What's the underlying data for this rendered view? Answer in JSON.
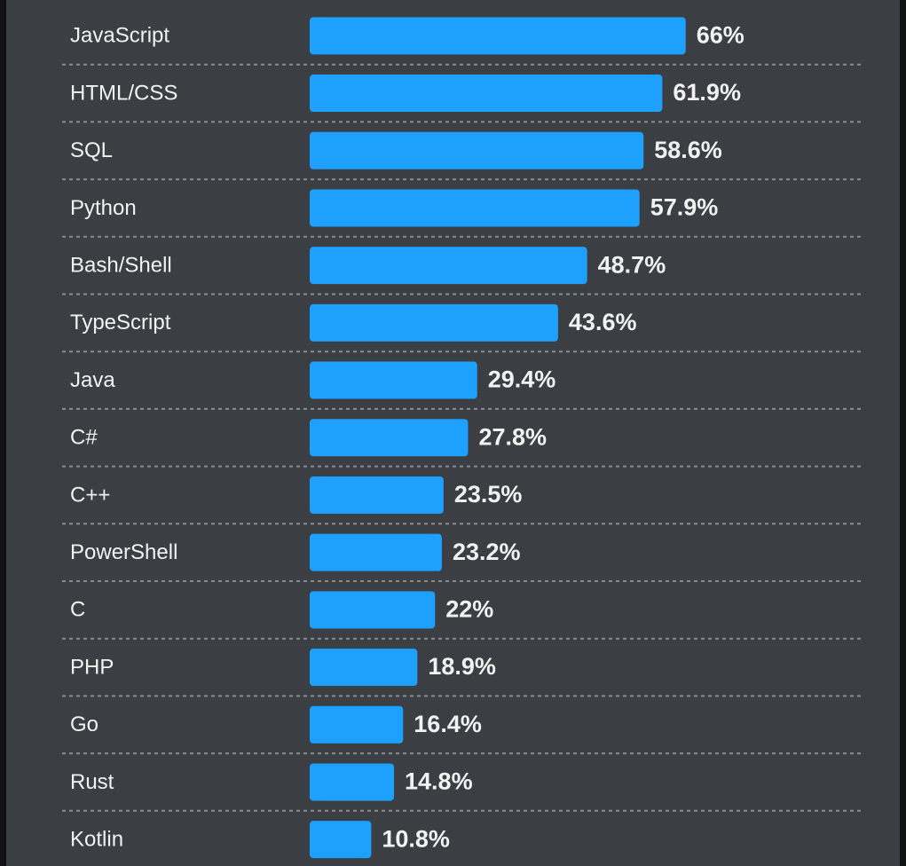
{
  "chart_data": {
    "type": "bar",
    "orientation": "horizontal",
    "categories": [
      "JavaScript",
      "HTML/CSS",
      "SQL",
      "Python",
      "Bash/Shell",
      "TypeScript",
      "Java",
      "C#",
      "C++",
      "PowerShell",
      "C",
      "PHP",
      "Go",
      "Rust",
      "Kotlin"
    ],
    "values": [
      66,
      61.9,
      58.6,
      57.9,
      48.7,
      43.6,
      29.4,
      27.8,
      23.5,
      23.2,
      22,
      18.9,
      16.4,
      14.8,
      10.8
    ],
    "value_labels": [
      "66%",
      "61.9%",
      "58.6%",
      "57.9%",
      "48.7%",
      "43.6%",
      "29.4%",
      "27.8%",
      "23.5%",
      "23.2%",
      "22%",
      "18.9%",
      "16.4%",
      "14.8%",
      "10.8%"
    ],
    "unit": "%",
    "grid": "dashed row separators",
    "legend": "none"
  },
  "colors": {
    "background": "#3b3f43",
    "bar": "#1ea0ff",
    "text": "#f2f2f2",
    "separator": "#8a8d90"
  }
}
